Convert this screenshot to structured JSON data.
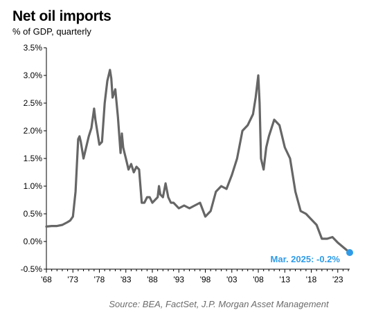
{
  "header": {
    "title": "Net oil imports",
    "subtitle": "% of GDP, quarterly"
  },
  "footer": {
    "source": "Source: BEA, FactSet, J.P. Morgan Asset Management"
  },
  "chart_data": {
    "type": "line",
    "title": "Net oil imports",
    "subtitle": "% of GDP, quarterly",
    "xlabel": "",
    "ylabel": "",
    "xlim": [
      1968,
      2025.25
    ],
    "ylim": [
      -0.5,
      3.5
    ],
    "grid": false,
    "x_ticks": [
      "'68",
      "'73",
      "'78",
      "'83",
      "'88",
      "'93",
      "'98",
      "'03",
      "'08",
      "'13",
      "'18",
      "'23"
    ],
    "y_ticks": [
      "-0.5%",
      "0.0%",
      "0.5%",
      "1.0%",
      "1.5%",
      "2.0%",
      "2.5%",
      "3.0%",
      "3.5%"
    ],
    "series": [
      {
        "color": "#666666",
        "x": [
          1968,
          1969,
          1970,
          1971,
          1972,
          1972.5,
          1973,
          1973.5,
          1974,
          1974.25,
          1974.5,
          1975,
          1975.5,
          1976,
          1976.5,
          1977,
          1977.25,
          1977.5,
          1978,
          1978.5,
          1979,
          1979.5,
          1980,
          1980.25,
          1980.5,
          1981,
          1981.25,
          1981.5,
          1982,
          1982.25,
          1982.5,
          1982.75,
          1983,
          1983.5,
          1984,
          1984.5,
          1985,
          1985.5,
          1986,
          1986.5,
          1987,
          1987.5,
          1988,
          1988.5,
          1989,
          1989.25,
          1989.5,
          1990,
          1990.5,
          1991,
          1991.5,
          1992,
          1993,
          1994,
          1995,
          1996,
          1997,
          1998,
          1999,
          2000,
          2001,
          2002,
          2003,
          2004,
          2005,
          2005.5,
          2006,
          2007,
          2007.5,
          2008,
          2008.25,
          2008.5,
          2009,
          2009.5,
          2010,
          2011,
          2012,
          2013,
          2014,
          2015,
          2016,
          2017,
          2018,
          2019,
          2020,
          2021,
          2022,
          2023,
          2024,
          2025.25
        ],
        "y": [
          0.27,
          0.28,
          0.28,
          0.3,
          0.35,
          0.38,
          0.45,
          0.9,
          1.85,
          1.9,
          1.8,
          1.5,
          1.7,
          1.9,
          2.05,
          2.4,
          2.2,
          2.05,
          1.75,
          1.8,
          2.5,
          2.9,
          3.1,
          2.95,
          2.6,
          2.75,
          2.5,
          2.25,
          1.6,
          1.95,
          1.7,
          1.6,
          1.5,
          1.3,
          1.4,
          1.25,
          1.35,
          1.3,
          0.7,
          0.7,
          0.8,
          0.8,
          0.7,
          0.75,
          0.8,
          1.0,
          0.85,
          0.8,
          1.05,
          0.8,
          0.7,
          0.7,
          0.6,
          0.65,
          0.6,
          0.65,
          0.7,
          0.45,
          0.55,
          0.9,
          1.0,
          0.95,
          1.2,
          1.5,
          2.0,
          2.05,
          2.1,
          2.3,
          2.6,
          3.0,
          2.5,
          1.5,
          1.3,
          1.7,
          1.9,
          2.2,
          2.1,
          1.7,
          1.5,
          0.9,
          0.55,
          0.5,
          0.4,
          0.3,
          0.05,
          0.05,
          0.08,
          -0.02,
          -0.1,
          -0.2
        ]
      }
    ],
    "annotations": [
      {
        "x": 2025.25,
        "y": -0.2,
        "text": "Mar. 2025: -0.2%",
        "color": "#2f9be8"
      }
    ]
  }
}
